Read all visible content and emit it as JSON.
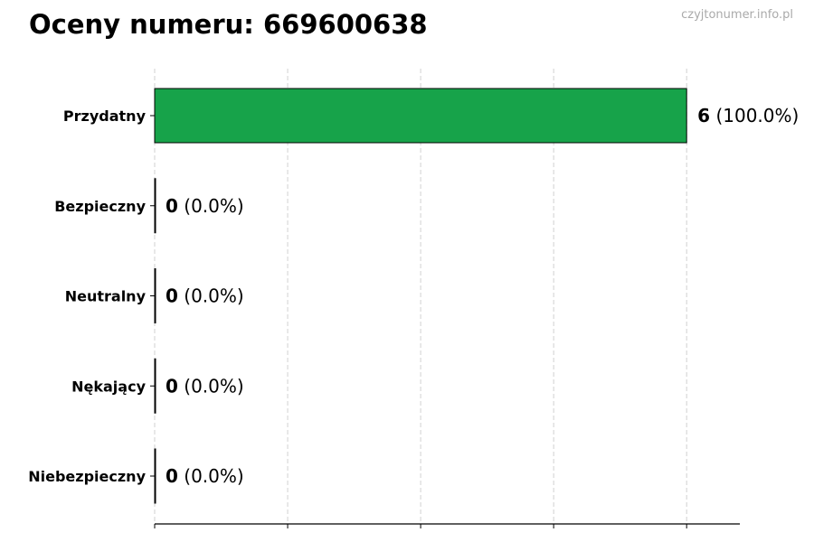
{
  "chart_data": {
    "type": "bar",
    "orientation": "horizontal",
    "title": "Oceny numeru: 669600638",
    "watermark": "czyjtonumer.info.pl",
    "categories": [
      "Przydatny",
      "Bezpieczny",
      "Neutralny",
      "Nękający",
      "Niebezpieczny"
    ],
    "values": [
      6,
      0,
      0,
      0,
      0
    ],
    "percent_labels": [
      "(100.0%)",
      "(0.0%)",
      "(0.0%)",
      "(0.0%)",
      "(0.0%)"
    ],
    "colors": [
      "#17a34a",
      "#17a34a",
      "#17a34a",
      "#17a34a",
      "#17a34a"
    ],
    "xlim": [
      0,
      6.6
    ],
    "xticks": [
      0,
      1.5,
      3,
      4.5,
      6
    ],
    "xtick_labels_shown": false,
    "grid": "vertical dashed",
    "xlabel": "",
    "ylabel": ""
  }
}
